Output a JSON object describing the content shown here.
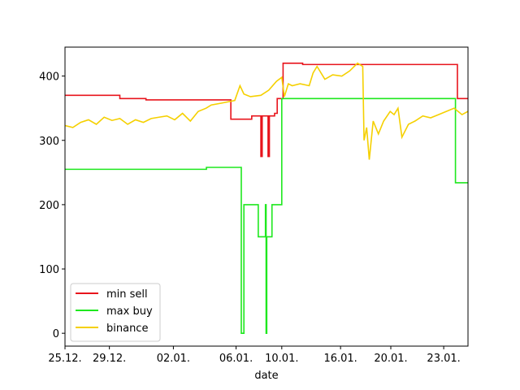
{
  "chart_data": {
    "type": "line",
    "x_label": "date",
    "xlim": [
      0,
      30.86
    ],
    "ylim": [
      -20,
      445
    ],
    "xticks": [
      {
        "value": 0,
        "label": "25.12."
      },
      {
        "value": 3.4,
        "label": "29.12."
      },
      {
        "value": 8.3,
        "label": "02.01."
      },
      {
        "value": 13.1,
        "label": "06.01."
      },
      {
        "value": 16.6,
        "label": "10.01."
      },
      {
        "value": 21.1,
        "label": "16.01."
      },
      {
        "value": 24.95,
        "label": "20.01."
      },
      {
        "value": 29,
        "label": "23.01."
      }
    ],
    "yticks": [
      0,
      100,
      200,
      300,
      400
    ],
    "legend": "lower left",
    "grid": false,
    "series": [
      {
        "name": "min sell",
        "color": "#e8141c",
        "x": [
          0,
          4.2,
          4.2,
          6.2,
          6.2,
          12.7,
          12.7,
          14.3,
          14.3,
          15.0,
          15.0,
          15.1,
          15.1,
          15.55,
          15.55,
          15.65,
          15.65,
          16.05,
          16.05,
          16.25,
          16.25,
          16.7,
          16.7,
          18.2,
          18.2,
          30.05,
          30.05,
          30.86
        ],
        "values": [
          370,
          370,
          365,
          365,
          363,
          363,
          333,
          333,
          338,
          338,
          275,
          275,
          338,
          338,
          275,
          275,
          338,
          338,
          342,
          342,
          365,
          365,
          420,
          420,
          418,
          418,
          365,
          365
        ]
      },
      {
        "name": "max buy",
        "color": "#1ee81e",
        "x": [
          0,
          10.83,
          10.83,
          13.5,
          13.5,
          13.7,
          13.7,
          14.8,
          14.8,
          15.35,
          15.35,
          15.4,
          15.4,
          15.45,
          15.45,
          15.85,
          15.85,
          16.6,
          16.6,
          29.9,
          29.9,
          30.86
        ],
        "values": [
          255,
          255,
          258,
          258,
          0,
          0,
          200,
          200,
          150,
          150,
          200,
          200,
          0,
          0,
          150,
          150,
          200,
          200,
          365,
          365,
          234,
          234
        ]
      },
      {
        "name": "binance",
        "color": "#f5d000",
        "x": [
          0,
          0.6,
          1.2,
          1.8,
          2.4,
          3.0,
          3.6,
          4.2,
          4.8,
          5.4,
          6.0,
          6.6,
          7.2,
          7.8,
          8.4,
          9.0,
          9.6,
          10.2,
          10.8,
          11.2,
          12.0,
          13.0,
          13.4,
          13.7,
          14.2,
          15.0,
          15.6,
          16.2,
          16.6,
          16.8,
          17.1,
          17.4,
          18.0,
          18.7,
          19.0,
          19.3,
          19.9,
          20.5,
          21.2,
          21.8,
          22.4,
          22.8,
          22.9,
          23.1,
          23.3,
          23.6,
          24.0,
          24.4,
          24.9,
          25.2,
          25.5,
          25.8,
          26.3,
          26.8,
          27.4,
          28.0,
          28.6,
          29.2,
          29.8,
          30.4,
          30.86
        ],
        "values": [
          323,
          320,
          328,
          332,
          325,
          336,
          331,
          334,
          325,
          332,
          328,
          334,
          336,
          338,
          332,
          342,
          330,
          345,
          350,
          355,
          358,
          362,
          385,
          372,
          368,
          370,
          378,
          392,
          398,
          368,
          388,
          385,
          388,
          385,
          405,
          415,
          395,
          402,
          400,
          408,
          420,
          415,
          300,
          320,
          270,
          330,
          310,
          330,
          345,
          340,
          350,
          305,
          325,
          330,
          338,
          335,
          340,
          345,
          350,
          340,
          345
        ]
      }
    ]
  }
}
